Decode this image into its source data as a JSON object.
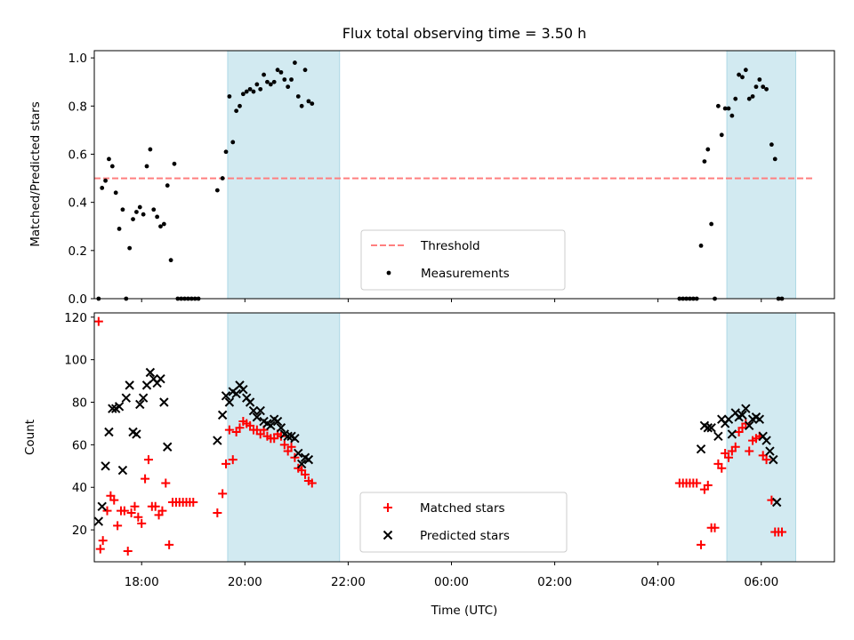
{
  "title": "Flux total observing time = 3.50 h",
  "xlabel": "Time (UTC)",
  "x_ticks": [
    "18:00",
    "20:00",
    "22:00",
    "00:00",
    "02:00",
    "04:00",
    "06:00"
  ],
  "colors": {
    "span": "#add8e6",
    "threshold": "#ff7f7f",
    "matched": "#ff0000",
    "predicted": "#000000",
    "points": "#000000"
  },
  "chart_data": [
    {
      "type": "scatter",
      "ylabel": "Matched/Predicted stars",
      "ylim": [
        0,
        1.03
      ],
      "xlim": [
        "17:05",
        "07:25"
      ],
      "y_ticks": [
        "0.0",
        "0.2",
        "0.4",
        "0.6",
        "0.8",
        "1.0"
      ],
      "legend": [
        "Threshold",
        "Measurements"
      ],
      "legend_position": "lower center",
      "threshold": {
        "value": 0.5,
        "x": [
          "17:05",
          "07:00"
        ]
      },
      "shaded_spans": [
        [
          "19:40",
          "21:50"
        ],
        [
          "05:20",
          "06:40"
        ]
      ],
      "series": [
        {
          "name": "Measurements",
          "points": [
            [
              "17:10",
              0.0
            ],
            [
              "17:14",
              0.46
            ],
            [
              "17:18",
              0.49
            ],
            [
              "17:22",
              0.58
            ],
            [
              "17:26",
              0.55
            ],
            [
              "17:30",
              0.44
            ],
            [
              "17:34",
              0.29
            ],
            [
              "17:38",
              0.37
            ],
            [
              "17:42",
              0.0
            ],
            [
              "17:46",
              0.21
            ],
            [
              "17:50",
              0.33
            ],
            [
              "17:54",
              0.36
            ],
            [
              "17:58",
              0.38
            ],
            [
              "18:02",
              0.35
            ],
            [
              "18:06",
              0.55
            ],
            [
              "18:10",
              0.62
            ],
            [
              "18:14",
              0.37
            ],
            [
              "18:18",
              0.34
            ],
            [
              "18:22",
              0.3
            ],
            [
              "18:26",
              0.31
            ],
            [
              "18:30",
              0.47
            ],
            [
              "18:34",
              0.16
            ],
            [
              "18:38",
              0.56
            ],
            [
              "18:42",
              0.0
            ],
            [
              "18:46",
              0.0
            ],
            [
              "18:50",
              0.0
            ],
            [
              "18:54",
              0.0
            ],
            [
              "18:58",
              0.0
            ],
            [
              "19:02",
              0.0
            ],
            [
              "19:06",
              0.0
            ],
            [
              "19:28",
              0.45
            ],
            [
              "19:34",
              0.5
            ],
            [
              "19:38",
              0.61
            ],
            [
              "19:42",
              0.84
            ],
            [
              "19:46",
              0.65
            ],
            [
              "19:50",
              0.78
            ],
            [
              "19:54",
              0.8
            ],
            [
              "19:58",
              0.85
            ],
            [
              "20:02",
              0.86
            ],
            [
              "20:06",
              0.87
            ],
            [
              "20:10",
              0.86
            ],
            [
              "20:14",
              0.89
            ],
            [
              "20:18",
              0.87
            ],
            [
              "20:22",
              0.93
            ],
            [
              "20:26",
              0.9
            ],
            [
              "20:30",
              0.89
            ],
            [
              "20:34",
              0.9
            ],
            [
              "20:38",
              0.95
            ],
            [
              "20:42",
              0.94
            ],
            [
              "20:46",
              0.91
            ],
            [
              "20:50",
              0.88
            ],
            [
              "20:54",
              0.91
            ],
            [
              "20:58",
              0.98
            ],
            [
              "21:02",
              0.84
            ],
            [
              "21:06",
              0.8
            ],
            [
              "21:10",
              0.95
            ],
            [
              "21:14",
              0.82
            ],
            [
              "21:18",
              0.81
            ],
            [
              "04:25",
              0.0
            ],
            [
              "04:29",
              0.0
            ],
            [
              "04:33",
              0.0
            ],
            [
              "04:37",
              0.0
            ],
            [
              "04:41",
              0.0
            ],
            [
              "04:45",
              0.0
            ],
            [
              "04:50",
              0.22
            ],
            [
              "04:54",
              0.57
            ],
            [
              "04:58",
              0.62
            ],
            [
              "05:02",
              0.31
            ],
            [
              "05:06",
              0.0
            ],
            [
              "05:10",
              0.8
            ],
            [
              "05:14",
              0.68
            ],
            [
              "05:18",
              0.79
            ],
            [
              "05:22",
              0.79
            ],
            [
              "05:26",
              0.76
            ],
            [
              "05:30",
              0.83
            ],
            [
              "05:34",
              0.93
            ],
            [
              "05:38",
              0.92
            ],
            [
              "05:42",
              0.95
            ],
            [
              "05:46",
              0.83
            ],
            [
              "05:50",
              0.84
            ],
            [
              "05:54",
              0.88
            ],
            [
              "05:58",
              0.91
            ],
            [
              "06:02",
              0.88
            ],
            [
              "06:06",
              0.87
            ],
            [
              "06:12",
              0.64
            ],
            [
              "06:16",
              0.58
            ],
            [
              "06:20",
              0.0
            ],
            [
              "06:24",
              0.0
            ]
          ]
        }
      ]
    },
    {
      "type": "scatter",
      "ylabel": "Count",
      "ylim": [
        5,
        122
      ],
      "xlim": [
        "17:05",
        "07:25"
      ],
      "y_ticks": [
        "20",
        "40",
        "60",
        "80",
        "100",
        "120"
      ],
      "legend": [
        "Matched stars",
        "Predicted stars"
      ],
      "legend_position": "lower center",
      "shaded_spans": [
        [
          "19:40",
          "21:50"
        ],
        [
          "05:20",
          "06:40"
        ]
      ],
      "series": [
        {
          "name": "Matched stars",
          "marker": "+",
          "points": [
            [
              "17:10",
              118
            ],
            [
              "17:12",
              11
            ],
            [
              "17:15",
              15
            ],
            [
              "17:20",
              29
            ],
            [
              "17:24",
              36
            ],
            [
              "17:28",
              34
            ],
            [
              "17:32",
              22
            ],
            [
              "17:36",
              29
            ],
            [
              "17:40",
              29
            ],
            [
              "17:44",
              10
            ],
            [
              "17:48",
              28
            ],
            [
              "17:52",
              31
            ],
            [
              "17:56",
              26
            ],
            [
              "18:00",
              23
            ],
            [
              "18:04",
              44
            ],
            [
              "18:08",
              53
            ],
            [
              "18:12",
              31
            ],
            [
              "18:16",
              31
            ],
            [
              "18:20",
              27
            ],
            [
              "18:24",
              29
            ],
            [
              "18:28",
              42
            ],
            [
              "18:32",
              13
            ],
            [
              "18:36",
              33
            ],
            [
              "18:40",
              33
            ],
            [
              "18:44",
              33
            ],
            [
              "18:48",
              33
            ],
            [
              "18:52",
              33
            ],
            [
              "18:56",
              33
            ],
            [
              "19:00",
              33
            ],
            [
              "19:28",
              28
            ],
            [
              "19:34",
              37
            ],
            [
              "19:38",
              51
            ],
            [
              "19:42",
              67
            ],
            [
              "19:46",
              53
            ],
            [
              "19:50",
              66
            ],
            [
              "19:54",
              68
            ],
            [
              "19:58",
              71
            ],
            [
              "20:02",
              70
            ],
            [
              "20:06",
              69
            ],
            [
              "20:10",
              67
            ],
            [
              "20:14",
              67
            ],
            [
              "20:18",
              65
            ],
            [
              "20:22",
              67
            ],
            [
              "20:26",
              64
            ],
            [
              "20:30",
              63
            ],
            [
              "20:34",
              63
            ],
            [
              "20:38",
              65
            ],
            [
              "20:42",
              64
            ],
            [
              "20:46",
              60
            ],
            [
              "20:50",
              57
            ],
            [
              "20:54",
              59
            ],
            [
              "20:58",
              54
            ],
            [
              "21:02",
              49
            ],
            [
              "21:06",
              48
            ],
            [
              "21:10",
              46
            ],
            [
              "21:14",
              43
            ],
            [
              "21:18",
              42
            ],
            [
              "04:25",
              42
            ],
            [
              "04:29",
              42
            ],
            [
              "04:33",
              42
            ],
            [
              "04:37",
              42
            ],
            [
              "04:41",
              42
            ],
            [
              "04:45",
              42
            ],
            [
              "04:50",
              13
            ],
            [
              "04:54",
              39
            ],
            [
              "04:58",
              41
            ],
            [
              "05:02",
              21
            ],
            [
              "05:06",
              21
            ],
            [
              "05:10",
              51
            ],
            [
              "05:14",
              49
            ],
            [
              "05:18",
              56
            ],
            [
              "05:22",
              54
            ],
            [
              "05:26",
              57
            ],
            [
              "05:30",
              59
            ],
            [
              "05:34",
              66
            ],
            [
              "05:38",
              68
            ],
            [
              "05:42",
              70
            ],
            [
              "05:46",
              57
            ],
            [
              "05:50",
              62
            ],
            [
              "05:54",
              63
            ],
            [
              "05:58",
              64
            ],
            [
              "06:02",
              55
            ],
            [
              "06:06",
              53
            ],
            [
              "06:12",
              34
            ],
            [
              "06:16",
              19
            ],
            [
              "06:20",
              19
            ],
            [
              "06:24",
              19
            ]
          ]
        },
        {
          "name": "Predicted stars",
          "marker": "x",
          "points": [
            [
              "17:10",
              24
            ],
            [
              "17:14",
              31
            ],
            [
              "17:18",
              50
            ],
            [
              "17:22",
              66
            ],
            [
              "17:26",
              77
            ],
            [
              "17:30",
              77
            ],
            [
              "17:34",
              78
            ],
            [
              "17:38",
              48
            ],
            [
              "17:42",
              82
            ],
            [
              "17:46",
              88
            ],
            [
              "17:50",
              66
            ],
            [
              "17:54",
              65
            ],
            [
              "17:58",
              79
            ],
            [
              "18:02",
              82
            ],
            [
              "18:06",
              88
            ],
            [
              "18:10",
              94
            ],
            [
              "18:14",
              91
            ],
            [
              "18:18",
              89
            ],
            [
              "18:22",
              91
            ],
            [
              "18:26",
              80
            ],
            [
              "18:30",
              59
            ],
            [
              "19:28",
              62
            ],
            [
              "19:34",
              74
            ],
            [
              "19:38",
              83
            ],
            [
              "19:42",
              80
            ],
            [
              "19:46",
              85
            ],
            [
              "19:50",
              84
            ],
            [
              "19:54",
              88
            ],
            [
              "19:58",
              86
            ],
            [
              "20:02",
              82
            ],
            [
              "20:06",
              80
            ],
            [
              "20:10",
              76
            ],
            [
              "20:14",
              73
            ],
            [
              "20:18",
              76
            ],
            [
              "20:22",
              71
            ],
            [
              "20:26",
              70
            ],
            [
              "20:30",
              69
            ],
            [
              "20:34",
              72
            ],
            [
              "20:38",
              71
            ],
            [
              "20:42",
              68
            ],
            [
              "20:46",
              65
            ],
            [
              "20:50",
              64
            ],
            [
              "20:54",
              64
            ],
            [
              "20:58",
              63
            ],
            [
              "21:02",
              56
            ],
            [
              "21:06",
              51
            ],
            [
              "21:10",
              54
            ],
            [
              "21:14",
              53
            ],
            [
              "04:50",
              58
            ],
            [
              "04:54",
              69
            ],
            [
              "04:58",
              68
            ],
            [
              "05:02",
              68
            ],
            [
              "05:10",
              64
            ],
            [
              "05:14",
              72
            ],
            [
              "05:18",
              70
            ],
            [
              "05:22",
              72
            ],
            [
              "05:26",
              65
            ],
            [
              "05:30",
              75
            ],
            [
              "05:34",
              73
            ],
            [
              "05:38",
              74
            ],
            [
              "05:42",
              77
            ],
            [
              "05:46",
              69
            ],
            [
              "05:50",
              72
            ],
            [
              "05:54",
              73
            ],
            [
              "05:58",
              72
            ],
            [
              "06:02",
              64
            ],
            [
              "06:06",
              62
            ],
            [
              "06:10",
              57
            ],
            [
              "06:14",
              53
            ],
            [
              "06:18",
              33
            ]
          ]
        }
      ]
    }
  ]
}
